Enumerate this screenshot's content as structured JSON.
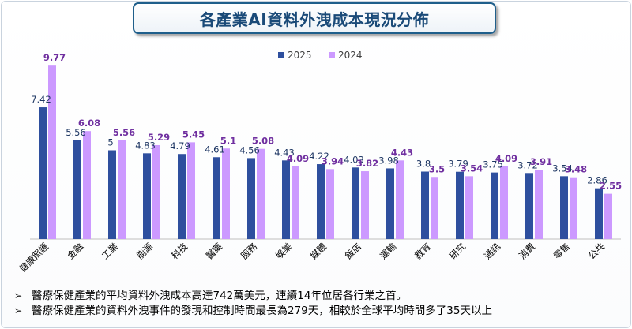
{
  "title": "各產業AI資料外洩成本現況分佈",
  "chart_data": {
    "type": "bar",
    "title": "各產業AI資料外洩成本現況分佈",
    "categories": [
      "健康照護",
      "金融",
      "工業",
      "能源",
      "科技",
      "醫藥",
      "服務",
      "娛樂",
      "媒體",
      "飯店",
      "運輸",
      "教育",
      "研究",
      "通訊",
      "消費",
      "零售",
      "公共"
    ],
    "series": [
      {
        "name": "2025",
        "color": "#2e4f9e",
        "values": [
          7.42,
          5.56,
          5,
          4.83,
          4.79,
          4.61,
          4.56,
          4.43,
          4.22,
          4.03,
          3.98,
          3.8,
          3.79,
          3.75,
          3.72,
          3.54,
          2.86
        ]
      },
      {
        "name": "2024",
        "color": "#cc99ff",
        "labelColor": "#7030a0",
        "values": [
          9.77,
          6.08,
          5.56,
          5.29,
          5.45,
          5.1,
          5.08,
          4.09,
          3.94,
          3.82,
          4.43,
          3.5,
          3.54,
          4.09,
          3.91,
          3.48,
          2.55
        ]
      }
    ],
    "labels2025": [
      "7.42",
      "5.56",
      "5",
      "4.83",
      "4.79",
      "4.61",
      "4.56",
      "4.43",
      "4.22",
      "4.03",
      "3.98",
      "3.8",
      "3.79",
      "3.75",
      "3.72",
      "3.54",
      "2.86"
    ],
    "labels2024": [
      "9.77",
      "6.08",
      "5.56",
      "5.29",
      "5.45",
      "5.1",
      "5.08",
      "4.09",
      "3.94",
      "3.82",
      "4.43",
      "3.5",
      "3.54",
      "4.09",
      "3.91",
      "3.48",
      "2.55"
    ],
    "ylim": [
      0,
      10
    ],
    "legend": "top-center",
    "grid": false,
    "xlabel": "",
    "ylabel": ""
  },
  "notes": [
    "醫療保健產業的平均資料外洩成本高達742萬美元，連續14年位居各行業之首。",
    "醫療保健產業的資料外洩事件的發現和控制時間最長為279天，相較於全球平均時間多了35天以上"
  ],
  "note_marker": "➢"
}
